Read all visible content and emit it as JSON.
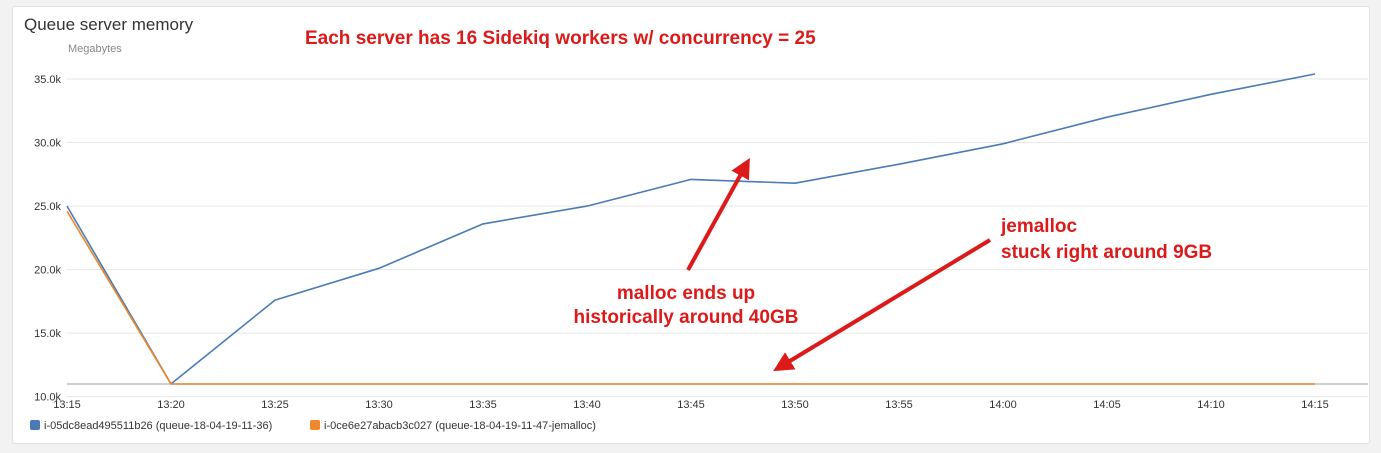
{
  "colors": {
    "series_blue": "#4a7bb6",
    "series_orange": "#f0872a",
    "annotation_red": "#dd1a1a",
    "grid": "#e6e6e6"
  },
  "chart_data": {
    "type": "line",
    "title": "Queue server memory",
    "ylabel": "Megabytes",
    "ylim": [
      8000,
      36500
    ],
    "yticks": [
      10000,
      15000,
      20000,
      25000,
      30000,
      35000
    ],
    "ytick_labels": [
      "10.0k",
      "15.0k",
      "20.0k",
      "25.0k",
      "30.0k",
      "35.0k"
    ],
    "x": [
      "13:15",
      "13:20",
      "13:25",
      "13:30",
      "13:35",
      "13:40",
      "13:45",
      "13:50",
      "13:55",
      "14:00",
      "14:05",
      "14:10",
      "14:15"
    ],
    "grid": true,
    "legend_position": "bottom-left",
    "series": [
      {
        "name": "i-05dc8ead495511b26 (queue-18-04-19-11-36)",
        "color": "#4a7bb6",
        "values": [
          25000,
          11000,
          17600,
          20100,
          23600,
          25000,
          27100,
          26800,
          28300,
          29900,
          32000,
          33800,
          35400
        ]
      },
      {
        "name": "i-0ce6e27abacb3c027 (queue-18-04-19-11-47-jemalloc)",
        "color": "#f0872a",
        "values": [
          24600,
          8700,
          8100,
          8200,
          8300,
          8600,
          8000,
          8600,
          8300,
          8800,
          8800,
          10100,
          9200
        ]
      }
    ],
    "annotations": [
      {
        "id": "header",
        "lines": [
          "Each server has 16 Sidekiq workers w/ concurrency = 25"
        ]
      },
      {
        "id": "malloc",
        "lines": [
          "malloc ends up",
          "historically around 40GB"
        ]
      },
      {
        "id": "jemalloc",
        "lines": [
          "jemalloc",
          "stuck right around 9GB"
        ]
      }
    ]
  }
}
